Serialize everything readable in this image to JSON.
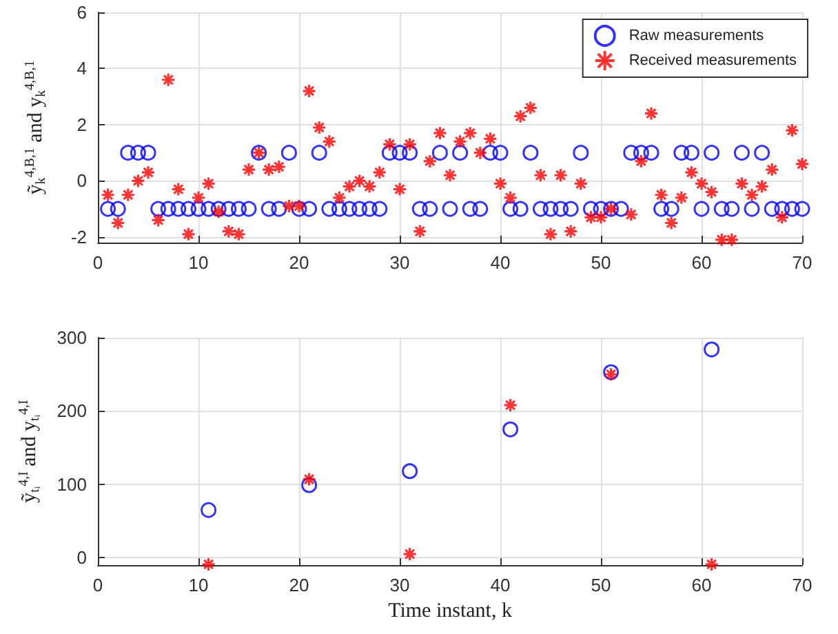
{
  "chart_data": [
    {
      "type": "scatter",
      "ylabel": "ỹ$_{k}$$^{4,B,1}$ and y$_{k}$$^{4,B,1}$",
      "x": [
        1,
        2,
        3,
        4,
        5,
        6,
        7,
        8,
        9,
        10,
        11,
        12,
        13,
        14,
        15,
        16,
        17,
        18,
        19,
        20,
        21,
        22,
        23,
        24,
        25,
        26,
        27,
        28,
        29,
        30,
        31,
        32,
        33,
        34,
        35,
        36,
        37,
        38,
        39,
        40,
        41,
        42,
        43,
        44,
        45,
        46,
        47,
        48,
        49,
        50,
        51,
        52,
        53,
        54,
        55,
        56,
        57,
        58,
        59,
        60,
        61,
        62,
        63,
        64,
        65,
        66,
        67,
        68,
        69,
        70
      ],
      "series": [
        {
          "name": "Raw measurements",
          "color": "#0000ff",
          "marker": "circle",
          "values": [
            -1,
            -1,
            1,
            1,
            1,
            -1,
            -1,
            -1,
            -1,
            -1,
            -1,
            -1,
            -1,
            -1,
            -1,
            1,
            -1,
            -1,
            1,
            -1,
            -1,
            1,
            -1,
            -1,
            -1,
            -1,
            -1,
            -1,
            1,
            1,
            1,
            -1,
            -1,
            1,
            -1,
            1,
            -1,
            -1,
            1,
            1,
            -1,
            -1,
            1,
            -1,
            -1,
            -1,
            -1,
            1,
            -1,
            -1,
            -1,
            -1,
            1,
            1,
            1,
            -1,
            -1,
            1,
            1,
            -1,
            1,
            -1,
            -1,
            1,
            -1,
            1,
            -1,
            -1,
            -1,
            -1
          ]
        },
        {
          "name": "Received measurements",
          "color": "#ff0000",
          "marker": "cross",
          "values": [
            -0.5,
            -1.5,
            -0.5,
            0,
            0.3,
            -1.4,
            3.6,
            -0.3,
            -1.9,
            -0.6,
            -0.1,
            -1.1,
            -1.8,
            -1.9,
            0.4,
            1,
            0.4,
            0.5,
            -0.9,
            -0.9,
            3.2,
            1.9,
            1.4,
            -0.6,
            -0.2,
            0,
            -0.2,
            0.3,
            1.3,
            -0.3,
            1.3,
            -1.8,
            0.7,
            1.7,
            0.2,
            1.4,
            1.7,
            1,
            1.5,
            -0.1,
            -0.6,
            2.3,
            2.6,
            0.2,
            -1.9,
            0.2,
            -1.8,
            -0.1,
            -1.3,
            -1.3,
            -1,
            null,
            -1.2,
            0.7,
            2.4,
            -0.5,
            -1.5,
            -0.6,
            0.3,
            -0.1,
            -0.4,
            -2.1,
            -2.1,
            -0.1,
            -0.5,
            -0.2,
            0.4,
            -1.3,
            1.8,
            0.6
          ]
        }
      ],
      "xlim": [
        0,
        70
      ],
      "xticks": [
        0,
        10,
        20,
        30,
        40,
        50,
        60,
        70
      ],
      "ylim": [
        -2.2,
        6
      ],
      "yticks": [
        -2,
        0,
        2,
        4,
        6
      ],
      "grid": true,
      "legend": "top right"
    },
    {
      "type": "scatter",
      "xlabel": "Time instant, k",
      "ylabel": "ỹ$_{tᵢ}$$^{4,I}$ and y$_{tᵢ}$$^{4,I}$",
      "x": [
        11,
        21,
        31,
        41,
        51,
        61
      ],
      "series": [
        {
          "color": "#0000ff",
          "marker": "circle",
          "values": [
            65,
            99,
            118,
            175,
            253,
            284
          ]
        },
        {
          "color": "#ff0000",
          "marker": "cross",
          "values": [
            -9,
            107,
            5,
            208,
            250,
            -9
          ]
        }
      ],
      "xlim": [
        0,
        70
      ],
      "xticks": [
        0,
        10,
        20,
        30,
        40,
        50,
        60,
        70
      ],
      "ylim": [
        -10,
        300
      ],
      "yticks": [
        0,
        100,
        200,
        300
      ],
      "grid": true,
      "legend": false
    }
  ]
}
